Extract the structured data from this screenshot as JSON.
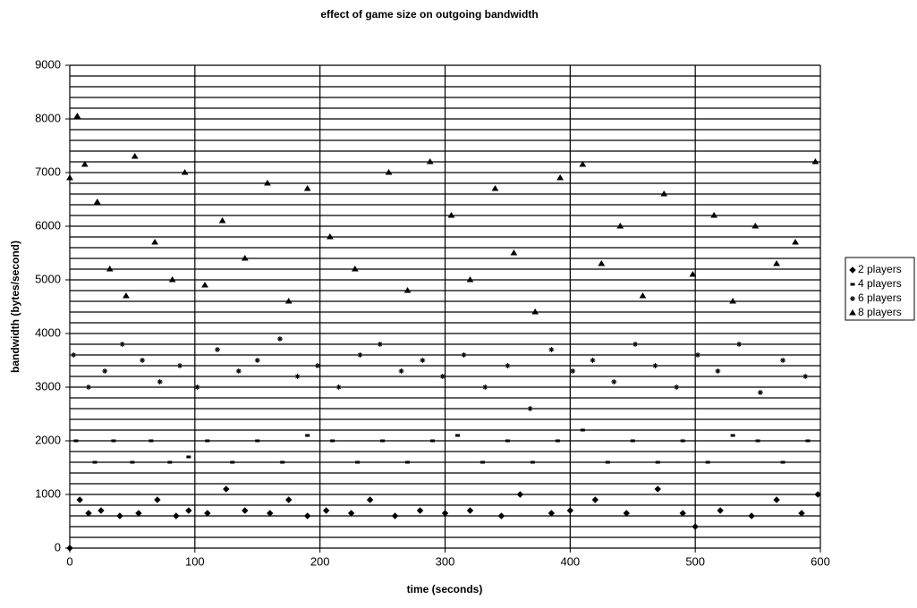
{
  "chart_data": {
    "type": "scatter",
    "title": "effect of game size on outgoing bandwidth",
    "x_label": "time (seconds)",
    "y_label": "bandwidth (bytes/second)",
    "xlim": [
      0,
      600
    ],
    "xticks": [
      0,
      100,
      200,
      300,
      400,
      500,
      600
    ],
    "ylim": [
      0,
      9000
    ],
    "yticks": [
      0,
      1000,
      2000,
      3000,
      4000,
      5000,
      6000,
      7000,
      8000,
      9000
    ],
    "y_minor_gridlines": [
      200,
      400,
      600,
      800,
      1200,
      1400,
      1600,
      1800,
      2200,
      2400,
      2600,
      2800,
      3200,
      3400,
      3600,
      3800,
      4200,
      4400,
      4600,
      4800,
      5200,
      5400,
      5600,
      5800,
      6200,
      6400,
      6600,
      6800,
      7200,
      7400,
      7600,
      7800,
      8200,
      8400,
      8600,
      8800
    ],
    "grid": true,
    "legend": "right",
    "series": [
      {
        "name": "2 players",
        "color": "#000000",
        "marker": "diamond",
        "x": [
          0,
          8,
          15,
          25,
          40,
          55,
          70,
          85,
          95,
          110,
          125,
          140,
          160,
          175,
          190,
          205,
          225,
          240,
          260,
          280,
          300,
          320,
          345,
          360,
          385,
          400,
          420,
          445,
          470,
          490,
          500,
          520,
          545,
          565,
          585,
          598
        ],
        "values": [
          0,
          900,
          650,
          700,
          600,
          650,
          900,
          600,
          700,
          650,
          1100,
          700,
          650,
          900,
          600,
          700,
          650,
          900,
          600,
          700,
          650,
          700,
          600,
          1000,
          650,
          700,
          900,
          650,
          1100,
          650,
          400,
          700,
          600,
          900,
          650,
          1000
        ]
      },
      {
        "name": "4 players",
        "color": "#000000",
        "marker": "dash",
        "x": [
          5,
          20,
          35,
          50,
          65,
          80,
          95,
          110,
          130,
          150,
          170,
          190,
          210,
          230,
          250,
          270,
          290,
          310,
          330,
          350,
          370,
          390,
          410,
          430,
          450,
          470,
          490,
          510,
          530,
          550,
          570,
          590
        ],
        "values": [
          2000,
          1600,
          2000,
          1600,
          2000,
          1600,
          1700,
          2000,
          1600,
          2000,
          1600,
          2100,
          2000,
          1600,
          2000,
          1600,
          2000,
          2100,
          1600,
          2000,
          1600,
          2000,
          2200,
          1600,
          2000,
          1600,
          2000,
          1600,
          2100,
          2000,
          1600,
          2000
        ]
      },
      {
        "name": "6 players",
        "color": "#000000",
        "marker": "star",
        "x": [
          3,
          15,
          28,
          42,
          58,
          72,
          88,
          102,
          118,
          135,
          150,
          168,
          182,
          198,
          215,
          232,
          248,
          265,
          282,
          298,
          315,
          332,
          350,
          368,
          385,
          402,
          418,
          435,
          452,
          468,
          485,
          502,
          518,
          535,
          552,
          570,
          588
        ],
        "values": [
          3600,
          3000,
          3300,
          3800,
          3500,
          3100,
          3400,
          3000,
          3700,
          3300,
          3500,
          3900,
          3200,
          3400,
          3000,
          3600,
          3800,
          3300,
          3500,
          3200,
          3600,
          3000,
          3400,
          2600,
          3700,
          3300,
          3500,
          3100,
          3800,
          3400,
          3000,
          3600,
          3300,
          3800,
          2900,
          3500,
          3200
        ]
      },
      {
        "name": "8 players",
        "color": "#000000",
        "marker": "triangle",
        "x": [
          0,
          6,
          12,
          22,
          32,
          45,
          52,
          68,
          82,
          92,
          108,
          122,
          140,
          158,
          175,
          190,
          208,
          228,
          255,
          270,
          288,
          305,
          320,
          340,
          355,
          372,
          392,
          410,
          425,
          440,
          458,
          475,
          498,
          515,
          530,
          548,
          565,
          580,
          596
        ],
        "values": [
          6900,
          8050,
          7150,
          6450,
          5200,
          4700,
          7300,
          5700,
          5000,
          7000,
          4900,
          6100,
          5400,
          6800,
          4600,
          6700,
          5800,
          5200,
          7000,
          4800,
          7200,
          6200,
          5000,
          6700,
          5500,
          4400,
          6900,
          7150,
          5300,
          6000,
          4700,
          6600,
          5100,
          6200,
          4600,
          6000,
          5300,
          5700,
          7200
        ]
      }
    ]
  }
}
